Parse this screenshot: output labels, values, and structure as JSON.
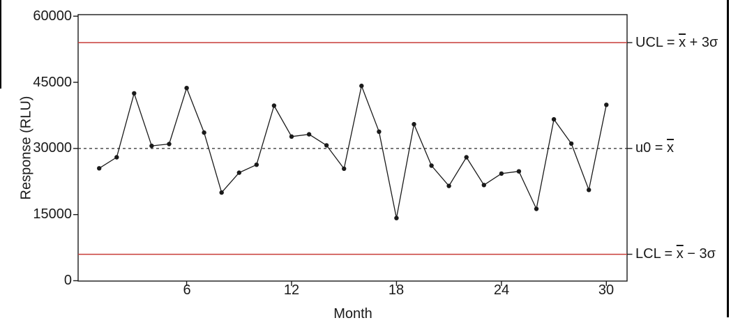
{
  "figure": {
    "background": "#ffffff",
    "axis_color": "#1a1a1a",
    "text_color": "#1a1a1a"
  },
  "chart_data": {
    "type": "line",
    "title": "",
    "xlabel": "Month",
    "ylabel": "Response (RLU)",
    "x": [
      1,
      2,
      3,
      4,
      5,
      6,
      7,
      8,
      9,
      10,
      11,
      12,
      13,
      14,
      15,
      16,
      17,
      18,
      19,
      20,
      21,
      22,
      23,
      24,
      25,
      26,
      27,
      28,
      29,
      30
    ],
    "values": [
      25500,
      28000,
      42500,
      30600,
      31000,
      43700,
      33600,
      20000,
      24500,
      26300,
      39700,
      32700,
      33200,
      30700,
      25400,
      44200,
      33800,
      14200,
      35500,
      26100,
      21500,
      28000,
      21700,
      24300,
      24800,
      16300,
      36600,
      31100,
      20600,
      39900
    ],
    "xticks": {
      "values": [
        6,
        12,
        18,
        24,
        30
      ],
      "labels": [
        "6",
        "12",
        "18",
        "24",
        "30"
      ]
    },
    "yticks": {
      "values": [
        0,
        15000,
        30000,
        45000,
        60000
      ],
      "labels": [
        "0",
        "15000",
        "30000",
        "45000",
        "60000"
      ]
    },
    "xlim": [
      -0.2,
      31.2
    ],
    "ylim": [
      0,
      60000
    ],
    "grid": false,
    "legend": "none",
    "marker": "filled-circle",
    "line_color": "#1a1a1a",
    "marker_color": "#1a1a1a",
    "control_lines": {
      "ucl": {
        "value": 54000,
        "color": "#c83c37",
        "style": "solid"
      },
      "center": {
        "value": 30000,
        "color": "#2a2a2a",
        "style": "dashed"
      },
      "lcl": {
        "value": 6000,
        "color": "#c83c37",
        "style": "solid"
      }
    }
  },
  "annotations": {
    "ucl": {
      "prefix": "UCL = ",
      "xbar": "x",
      "suffix": " + 3σ"
    },
    "center": {
      "prefix": "u0 = ",
      "xbar": "x",
      "suffix": ""
    },
    "lcl": {
      "prefix": "LCL = ",
      "xbar": "x",
      "suffix": " − 3σ"
    }
  }
}
